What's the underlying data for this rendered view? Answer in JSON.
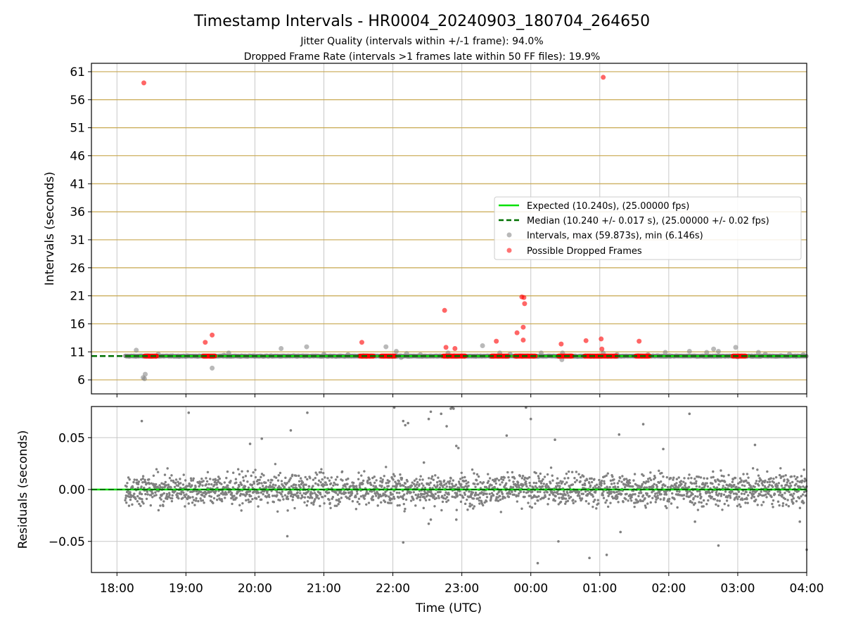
{
  "chart_data": [
    {
      "type": "scatter",
      "title": "Timestamp Intervals - HR0004_20240903_180704_264650",
      "subtitle_lines": [
        "Jitter Quality (intervals within +/-1 frame): 94.0%",
        "Dropped Frame Rate (intervals >1 frames late within 50 FF files): 19.9%"
      ],
      "xlabel": "",
      "ylabel": "Intervals (seconds)",
      "x_tick_labels": [
        "18:00",
        "19:00",
        "20:00",
        "21:00",
        "22:00",
        "23:00",
        "00:00",
        "01:00",
        "02:00",
        "03:00",
        "04:00"
      ],
      "x_tick_hours": [
        18,
        19,
        20,
        21,
        22,
        23,
        24,
        25,
        26,
        27,
        28
      ],
      "xlim_hours": [
        17.63,
        28.0
      ],
      "ylim": [
        3.5,
        62.5
      ],
      "y_ticks": [
        6,
        11,
        16,
        21,
        26,
        31,
        36,
        41,
        46,
        51,
        56,
        61
      ],
      "grid": true,
      "colors": {
        "expected": "#00e000",
        "median": "#007000",
        "intervals": "#808080",
        "dropped": "#ff0000",
        "gold_grid": "#c8a850",
        "grid": "#c8c8c8"
      },
      "expected_line": {
        "name": "Expected (10.240s), (25.00000 fps)",
        "y": 10.24,
        "x_start_hour": 18.12
      },
      "median_line": {
        "name": "Median (10.240 +/- 0.017 s), (25.00000 +/- 0.02 fps)",
        "y": 10.24
      },
      "legend": {
        "position": "center-right",
        "entries": [
          "Expected (10.240s), (25.00000 fps)",
          "Median (10.240 +/- 0.017 s), (25.00000 +/- 0.02 fps)",
          "Intervals, max (59.873s), min (6.146s)",
          "Possible Dropped Frames"
        ]
      },
      "series": [
        {
          "name": "Intervals, max (59.873s), min (6.146s)",
          "points": [
            [
              18.28,
              11.3
            ],
            [
              18.38,
              6.4
            ],
            [
              18.4,
              6.2
            ],
            [
              18.41,
              7.0
            ],
            [
              18.6,
              10.6
            ],
            [
              19.38,
              8.1
            ],
            [
              19.55,
              10.4
            ],
            [
              19.62,
              10.8
            ],
            [
              19.8,
              10.2
            ],
            [
              20.38,
              11.6
            ],
            [
              20.75,
              11.9
            ],
            [
              21.0,
              10.6
            ],
            [
              21.35,
              10.5
            ],
            [
              21.9,
              11.9
            ],
            [
              22.05,
              11.1
            ],
            [
              22.12,
              10.0
            ],
            [
              22.2,
              10.7
            ],
            [
              22.4,
              10.5
            ],
            [
              22.8,
              10.8
            ],
            [
              23.3,
              12.1
            ],
            [
              23.55,
              10.8
            ],
            [
              23.7,
              10.6
            ],
            [
              24.15,
              10.8
            ],
            [
              24.45,
              9.6
            ],
            [
              24.46,
              10.8
            ],
            [
              25.05,
              10.8
            ],
            [
              25.25,
              10.5
            ],
            [
              25.7,
              10.5
            ],
            [
              25.95,
              10.9
            ],
            [
              26.3,
              11.1
            ],
            [
              26.55,
              10.9
            ],
            [
              26.65,
              11.5
            ],
            [
              26.72,
              11.1
            ],
            [
              26.97,
              11.8
            ],
            [
              27.0,
              10.1
            ],
            [
              27.2,
              10.2
            ],
            [
              27.3,
              10.9
            ],
            [
              27.4,
              10.6
            ],
            [
              27.75,
              10.6
            ],
            [
              27.95,
              10.5
            ]
          ]
        },
        {
          "name": "Possible Dropped Frames",
          "points": [
            [
              18.39,
              59.0
            ],
            [
              19.28,
              12.7
            ],
            [
              19.38,
              14.0
            ],
            [
              21.55,
              12.7
            ],
            [
              22.75,
              18.4
            ],
            [
              22.77,
              11.8
            ],
            [
              22.9,
              11.6
            ],
            [
              23.5,
              12.9
            ],
            [
              23.8,
              14.4
            ],
            [
              23.87,
              20.8
            ],
            [
              23.89,
              15.4
            ],
            [
              23.9,
              20.7
            ],
            [
              23.91,
              19.6
            ],
            [
              23.89,
              13.1
            ],
            [
              24.44,
              12.4
            ],
            [
              24.8,
              13.0
            ],
            [
              25.02,
              13.3
            ],
            [
              25.03,
              11.5
            ],
            [
              25.05,
              60.0
            ],
            [
              25.57,
              12.9
            ]
          ],
          "dense_bands_hours": [
            [
              18.4,
              18.58
            ],
            [
              19.25,
              19.42
            ],
            [
              21.52,
              21.72
            ],
            [
              21.83,
              22.03
            ],
            [
              22.73,
              23.05
            ],
            [
              23.43,
              23.67
            ],
            [
              23.77,
              24.07
            ],
            [
              24.4,
              24.6
            ],
            [
              24.78,
              25.25
            ],
            [
              25.52,
              25.72
            ],
            [
              26.93,
              27.12
            ]
          ],
          "dense_band_y": 10.24
        }
      ]
    },
    {
      "type": "scatter",
      "xlabel": "Time (UTC)",
      "ylabel": "Residuals (seconds)",
      "x_tick_labels": [
        "18:00",
        "19:00",
        "20:00",
        "21:00",
        "22:00",
        "23:00",
        "00:00",
        "01:00",
        "02:00",
        "03:00",
        "04:00"
      ],
      "x_tick_hours": [
        18,
        19,
        20,
        21,
        22,
        23,
        24,
        25,
        26,
        27,
        28
      ],
      "xlim_hours": [
        17.63,
        28.0
      ],
      "ylim": [
        -0.08,
        0.08
      ],
      "y_ticks": [
        0.05,
        0.0,
        -0.05
      ],
      "y_tick_labels": [
        "0.05",
        "0.00",
        "−0.05"
      ],
      "grid": true,
      "zero_line": {
        "y": 0.0
      },
      "residual_series": {
        "name": "Residuals",
        "x_range_hours": [
          18.12,
          28.0
        ],
        "typical_spread_seconds": 0.012,
        "outliers": [
          [
            18.36,
            0.066
          ],
          [
            19.04,
            0.074
          ],
          [
            19.93,
            0.044
          ],
          [
            20.1,
            0.049
          ],
          [
            20.52,
            0.057
          ],
          [
            20.76,
            0.074
          ],
          [
            20.47,
            -0.045
          ],
          [
            22.02,
            0.079
          ],
          [
            22.15,
            0.066
          ],
          [
            22.18,
            0.062
          ],
          [
            22.22,
            0.064
          ],
          [
            22.45,
            0.026
          ],
          [
            22.52,
            0.068
          ],
          [
            22.55,
            0.075
          ],
          [
            22.7,
            0.073
          ],
          [
            22.78,
            0.061
          ],
          [
            22.84,
            0.078
          ],
          [
            22.86,
            0.079
          ],
          [
            22.88,
            0.078
          ],
          [
            22.92,
            0.042
          ],
          [
            22.95,
            0.04
          ],
          [
            22.15,
            -0.051
          ],
          [
            22.52,
            -0.033
          ],
          [
            22.55,
            -0.029
          ],
          [
            22.92,
            -0.029
          ],
          [
            23.65,
            0.052
          ],
          [
            23.93,
            0.079
          ],
          [
            24.0,
            0.068
          ],
          [
            24.35,
            0.048
          ],
          [
            24.4,
            -0.05
          ],
          [
            24.1,
            -0.071
          ],
          [
            24.85,
            -0.066
          ],
          [
            25.1,
            -0.063
          ],
          [
            25.28,
            0.053
          ],
          [
            25.3,
            -0.041
          ],
          [
            25.63,
            0.063
          ],
          [
            25.92,
            0.039
          ],
          [
            26.3,
            0.073
          ],
          [
            26.38,
            -0.031
          ],
          [
            26.72,
            -0.054
          ],
          [
            27.25,
            0.043
          ],
          [
            27.9,
            -0.031
          ],
          [
            28.0,
            -0.058
          ]
        ]
      }
    }
  ]
}
